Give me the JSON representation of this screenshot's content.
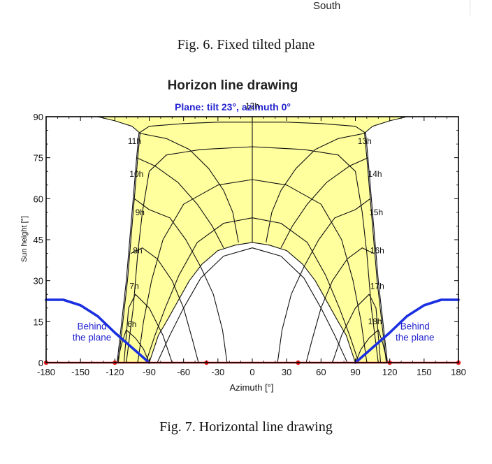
{
  "header": {
    "top_label": "South"
  },
  "captions": {
    "fig6": "Fig. 6. Fixed tilted plane",
    "fig7": "Fig. 7. Horizontal line drawing"
  },
  "colors": {
    "fill": "#ffff9e",
    "behind_line": "#1a2fe0",
    "horizon": "#ee1c1c",
    "subtitle": "#2323cf",
    "grid": "#111111"
  },
  "chart_data": {
    "type": "line",
    "title": "Horizon line drawing",
    "subtitle": "Plane: tilt 23°, azimuth 0°",
    "xlabel": "Azimuth [°]",
    "ylabel": "Sun height [°]",
    "xlim": [
      -180,
      180
    ],
    "ylim": [
      0,
      90
    ],
    "x_ticks": [
      -180,
      -150,
      -120,
      -90,
      -60,
      -30,
      0,
      30,
      60,
      90,
      120,
      150,
      180
    ],
    "y_ticks": [
      0,
      15,
      30,
      45,
      60,
      75,
      90
    ],
    "hour_labels": [
      {
        "label": "6h",
        "az": -101,
        "h": 13
      },
      {
        "label": "7h",
        "az": -99,
        "h": 27
      },
      {
        "label": "8h",
        "az": -96,
        "h": 40
      },
      {
        "label": "9h",
        "az": -94,
        "h": 54
      },
      {
        "label": "10h",
        "az": -95,
        "h": 68
      },
      {
        "label": "11h",
        "az": -97,
        "h": 80
      },
      {
        "label": "12h",
        "az": 0,
        "h": 93
      },
      {
        "label": "13h",
        "az": 92,
        "h": 80
      },
      {
        "label": "14h",
        "az": 101,
        "h": 68
      },
      {
        "label": "15h",
        "az": 102,
        "h": 54
      },
      {
        "label": "16h",
        "az": 103,
        "h": 40
      },
      {
        "label": "17h",
        "az": 103,
        "h": 27
      },
      {
        "label": "18h",
        "az": 101,
        "h": 14
      }
    ],
    "annotations": [
      {
        "lines": [
          "Behind",
          "the plane"
        ],
        "az": -140,
        "h": 8
      },
      {
        "lines": [
          "Behind",
          "the plane"
        ],
        "az": 142,
        "h": 8
      }
    ],
    "series": [
      {
        "name": "behind-the-plane-left",
        "points": [
          [
            -180,
            23
          ],
          [
            -165,
            23
          ],
          [
            -150,
            21
          ],
          [
            -135,
            17
          ],
          [
            -120,
            11
          ],
          [
            -105,
            5.5
          ],
          [
            -90,
            0
          ]
        ]
      },
      {
        "name": "behind-the-plane-right",
        "points": [
          [
            90,
            0
          ],
          [
            105,
            5.5
          ],
          [
            120,
            11
          ],
          [
            135,
            17
          ],
          [
            150,
            21
          ],
          [
            165,
            23
          ],
          [
            180,
            23
          ]
        ]
      },
      {
        "name": "horizon",
        "points": [
          [
            -180,
            0
          ],
          [
            180,
            0
          ]
        ],
        "markers": [
          -180,
          -120,
          -40,
          40,
          120,
          180
        ]
      }
    ],
    "sun_diagram": {
      "outer_path": [
        [
          -117,
          0
        ],
        [
          -109,
          30
        ],
        [
          -103,
          60
        ],
        [
          -100,
          75
        ],
        [
          -98,
          84
        ],
        [
          -105,
          86.5
        ],
        [
          -120,
          88.5
        ],
        [
          -135,
          90
        ],
        [
          135,
          90
        ],
        [
          120,
          88.5
        ],
        [
          105,
          86.5
        ],
        [
          98,
          84
        ],
        [
          100,
          75
        ],
        [
          103,
          60
        ],
        [
          109,
          30
        ],
        [
          117,
          0
        ],
        [
          90,
          0
        ],
        [
          82,
          10
        ],
        [
          75,
          15
        ],
        [
          55,
          30
        ],
        [
          44,
          36
        ],
        [
          30,
          41
        ],
        [
          15,
          43
        ],
        [
          0,
          44
        ],
        [
          -15,
          43
        ],
        [
          -30,
          41
        ],
        [
          -44,
          36
        ],
        [
          -55,
          30
        ],
        [
          -75,
          15
        ],
        [
          -82,
          10
        ],
        [
          -90,
          0
        ]
      ],
      "date_curves": [
        [
          [
            -118,
            0
          ],
          [
            -110,
            30
          ],
          [
            -104,
            60
          ],
          [
            -101,
            75
          ],
          [
            -99,
            84
          ],
          [
            -90,
            86.5
          ],
          [
            -60,
            87.5
          ],
          [
            -30,
            88
          ],
          [
            0,
            88
          ],
          [
            30,
            88
          ],
          [
            60,
            87.5
          ],
          [
            90,
            86.5
          ],
          [
            99,
            84
          ],
          [
            101,
            75
          ],
          [
            104,
            60
          ],
          [
            110,
            30
          ],
          [
            118,
            0
          ]
        ],
        [
          [
            -110,
            0
          ],
          [
            -104,
            20
          ],
          [
            -100,
            40
          ],
          [
            -96,
            55
          ],
          [
            -90,
            70
          ],
          [
            -75,
            76
          ],
          [
            -45,
            78
          ],
          [
            0,
            79
          ],
          [
            45,
            78
          ],
          [
            75,
            76
          ],
          [
            90,
            70
          ],
          [
            96,
            55
          ],
          [
            100,
            40
          ],
          [
            104,
            20
          ],
          [
            110,
            0
          ]
        ],
        [
          [
            -100,
            0
          ],
          [
            -95,
            15
          ],
          [
            -88,
            30
          ],
          [
            -78,
            45
          ],
          [
            -60,
            58
          ],
          [
            -30,
            65
          ],
          [
            0,
            67
          ],
          [
            30,
            65
          ],
          [
            60,
            58
          ],
          [
            78,
            45
          ],
          [
            88,
            30
          ],
          [
            95,
            15
          ],
          [
            100,
            0
          ]
        ],
        [
          [
            -93,
            0
          ],
          [
            -85,
            10
          ],
          [
            -76,
            20
          ],
          [
            -64,
            32
          ],
          [
            -48,
            44
          ],
          [
            -25,
            51
          ],
          [
            0,
            53
          ],
          [
            25,
            51
          ],
          [
            48,
            44
          ],
          [
            64,
            32
          ],
          [
            76,
            20
          ],
          [
            85,
            10
          ],
          [
            93,
            0
          ]
        ],
        [
          [
            -83,
            0
          ],
          [
            -72,
            10
          ],
          [
            -60,
            20
          ],
          [
            -45,
            31
          ],
          [
            -25,
            39
          ],
          [
            0,
            42
          ],
          [
            25,
            39
          ],
          [
            45,
            31
          ],
          [
            60,
            20
          ],
          [
            72,
            10
          ],
          [
            83,
            0
          ]
        ]
      ],
      "hour_curves": [
        [
          [
            -118,
            0
          ],
          [
            -114,
            7
          ],
          [
            -110,
            12
          ],
          [
            -102,
            9
          ],
          [
            -95,
            5
          ],
          [
            -90,
            0
          ]
        ],
        [
          [
            -112,
            0
          ],
          [
            -108,
            20
          ],
          [
            -102,
            25
          ],
          [
            -90,
            20
          ],
          [
            -78,
            10
          ],
          [
            -70,
            0
          ]
        ],
        [
          [
            -106,
            40
          ],
          [
            -96,
            42
          ],
          [
            -83,
            38
          ],
          [
            -70,
            30
          ],
          [
            -60,
            20
          ],
          [
            -52,
            8
          ],
          [
            -47,
            0
          ]
        ],
        [
          [
            -103,
            60
          ],
          [
            -90,
            56
          ],
          [
            -72,
            53
          ],
          [
            -58,
            45
          ],
          [
            -45,
            35
          ],
          [
            -34,
            25
          ],
          [
            -26,
            12
          ],
          [
            -22,
            0
          ]
        ],
        [
          [
            -101,
            75
          ],
          [
            -85,
            72
          ],
          [
            -65,
            66
          ],
          [
            -48,
            58
          ],
          [
            -35,
            50
          ],
          [
            -25,
            42
          ]
        ],
        [
          [
            -99,
            84
          ],
          [
            -75,
            82
          ],
          [
            -55,
            78
          ],
          [
            -38,
            71
          ],
          [
            -25,
            63
          ],
          [
            -17,
            55
          ],
          [
            -12,
            44
          ]
        ],
        [
          [
            0,
            90
          ],
          [
            0,
            44
          ]
        ],
        [
          [
            99,
            84
          ],
          [
            75,
            82
          ],
          [
            55,
            78
          ],
          [
            38,
            71
          ],
          [
            25,
            63
          ],
          [
            17,
            55
          ],
          [
            12,
            44
          ]
        ],
        [
          [
            101,
            75
          ],
          [
            85,
            72
          ],
          [
            65,
            66
          ],
          [
            48,
            58
          ],
          [
            35,
            50
          ],
          [
            25,
            42
          ]
        ],
        [
          [
            103,
            60
          ],
          [
            90,
            56
          ],
          [
            72,
            53
          ],
          [
            58,
            45
          ],
          [
            45,
            35
          ],
          [
            34,
            25
          ],
          [
            26,
            12
          ],
          [
            22,
            0
          ]
        ],
        [
          [
            106,
            40
          ],
          [
            96,
            42
          ],
          [
            83,
            38
          ],
          [
            70,
            30
          ],
          [
            60,
            20
          ],
          [
            52,
            8
          ],
          [
            47,
            0
          ]
        ],
        [
          [
            112,
            0
          ],
          [
            108,
            20
          ],
          [
            102,
            25
          ],
          [
            90,
            20
          ],
          [
            78,
            10
          ],
          [
            70,
            0
          ]
        ],
        [
          [
            118,
            0
          ],
          [
            114,
            7
          ],
          [
            110,
            12
          ],
          [
            102,
            9
          ],
          [
            95,
            5
          ],
          [
            90,
            0
          ]
        ]
      ]
    }
  }
}
